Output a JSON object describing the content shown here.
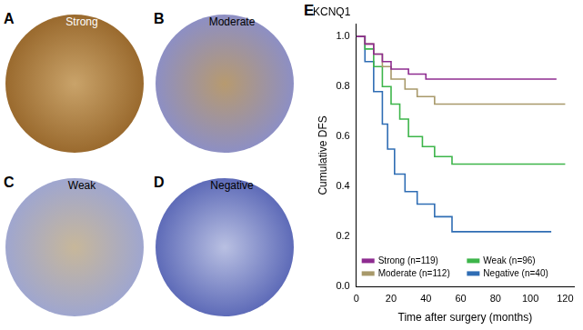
{
  "image_panels": [
    {
      "letter": "A",
      "label": "Strong"
    },
    {
      "letter": "B",
      "label": "Moderate"
    },
    {
      "letter": "C",
      "label": "Weak"
    },
    {
      "letter": "D",
      "label": "Negative"
    }
  ],
  "chart_data": {
    "panel": "E",
    "type": "line",
    "title": "KCNQ1",
    "x_label": "Time after surgery (months)",
    "y_label": "Cumulative DFS",
    "line_style": "steps",
    "legend": "lower left",
    "grid": false,
    "xlim": [
      0,
      125
    ],
    "xticks": [
      0,
      20,
      40,
      60,
      80,
      100,
      120
    ],
    "ylim": [
      0,
      1.05
    ],
    "yticks": [
      {
        "value": 0,
        "label": "0.0"
      },
      0.2,
      0.4,
      0.6,
      0.8,
      {
        "value": 1,
        "label": "1.0"
      }
    ],
    "series": [
      {
        "name": "Strong (n=119)",
        "color": "#8e2c90",
        "x": [
          0,
          5,
          10,
          15,
          20,
          30,
          40,
          115
        ],
        "values": [
          1.0,
          0.97,
          0.93,
          0.9,
          0.87,
          0.85,
          0.83,
          0.83
        ]
      },
      {
        "name": "Moderate (n=112)",
        "color": "#a8996a",
        "x": [
          0,
          5,
          10,
          15,
          20,
          28,
          35,
          45,
          120
        ],
        "values": [
          1.0,
          0.97,
          0.93,
          0.88,
          0.83,
          0.79,
          0.76,
          0.73,
          0.73
        ]
      },
      {
        "name": "Weak (n=96)",
        "color": "#3db54a",
        "x": [
          0,
          5,
          10,
          15,
          20,
          25,
          30,
          38,
          45,
          55,
          120
        ],
        "values": [
          1.0,
          0.95,
          0.88,
          0.8,
          0.73,
          0.67,
          0.6,
          0.56,
          0.52,
          0.49,
          0.49
        ]
      },
      {
        "name": "Negative (n=40)",
        "color": "#2f6db4",
        "x": [
          0,
          5,
          10,
          15,
          18,
          22,
          28,
          35,
          45,
          55,
          112
        ],
        "values": [
          1.0,
          0.9,
          0.78,
          0.65,
          0.55,
          0.45,
          0.38,
          0.33,
          0.28,
          0.22,
          0.22
        ]
      }
    ]
  }
}
